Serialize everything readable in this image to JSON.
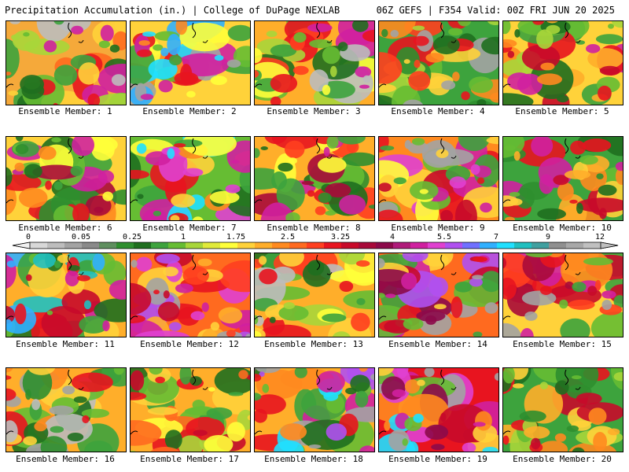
{
  "header": {
    "left": "Precipitation Accumulation (in.) | College of DuPage NEXLAB",
    "right": "06Z GEFS | F354 Valid: 00Z FRI JUN 20 2025"
  },
  "colorbar": {
    "labels": [
      "0",
      "0.05",
      "0.25",
      "1",
      "1.75",
      "2.5",
      "3.25",
      "4",
      "5.5",
      "7",
      "9",
      "12"
    ],
    "colors": [
      "#d8d8d8",
      "#bdbdbd",
      "#a3a3a3",
      "#8a8a8a",
      "#5f8f5f",
      "#2f8f2f",
      "#1f6f1f",
      "#3da33d",
      "#66bd33",
      "#a8d63a",
      "#e0ea3a",
      "#ffff3a",
      "#ffd23a",
      "#ffae2a",
      "#ff8a1f",
      "#ff6a1f",
      "#ff3f1f",
      "#e8141f",
      "#c80a2a",
      "#a80a3a",
      "#8c0a4a",
      "#b01a7a",
      "#d020a0",
      "#e040d0",
      "#b050f0",
      "#7070ff",
      "#30b0ff",
      "#20e0ff",
      "#20c0c0",
      "#40a0a0",
      "#909090",
      "#a8a8a8",
      "#c0c0c0"
    ]
  },
  "members": [
    {
      "label": "Ensemble Member: 1",
      "base": "#f5a93a",
      "blobs": [
        "#3da33d",
        "#1f6f1f",
        "#ffd23a",
        "#e8141f",
        "#d020a0",
        "#66bd33",
        "#a8d63a",
        "#ff6a1f",
        "#bdbdbd"
      ]
    },
    {
      "label": "Ensemble Member: 2",
      "base": "#ffd23a",
      "blobs": [
        "#66bd33",
        "#ff8a1f",
        "#e8141f",
        "#d020a0",
        "#30b0ff",
        "#20e0ff",
        "#a3a3a3",
        "#3da33d",
        "#ffff3a"
      ]
    },
    {
      "label": "Ensemble Member: 3",
      "base": "#ffae2a",
      "blobs": [
        "#3da33d",
        "#66bd33",
        "#e8141f",
        "#d020a0",
        "#ff3f1f",
        "#a8d63a",
        "#ffff3a",
        "#1f6f1f",
        "#bdbdbd"
      ]
    },
    {
      "label": "Ensemble Member: 4",
      "base": "#3da33d",
      "blobs": [
        "#1f6f1f",
        "#66bd33",
        "#ffd23a",
        "#ff8a1f",
        "#e8141f",
        "#a3a3a3",
        "#a8d63a",
        "#2f8f2f",
        "#ff3f1f"
      ]
    },
    {
      "label": "Ensemble Member: 5",
      "base": "#ffd23a",
      "blobs": [
        "#3da33d",
        "#66bd33",
        "#e8141f",
        "#ff8a1f",
        "#a8d63a",
        "#1f6f1f",
        "#c80a2a",
        "#ffae2a",
        "#d020a0"
      ]
    },
    {
      "label": "Ensemble Member: 6",
      "base": "#ffd23a",
      "blobs": [
        "#3da33d",
        "#1f6f1f",
        "#e8141f",
        "#d020a0",
        "#ff8a1f",
        "#66bd33",
        "#ffff3a",
        "#a80a3a",
        "#2f8f2f"
      ]
    },
    {
      "label": "Ensemble Member: 7",
      "base": "#66bd33",
      "blobs": [
        "#3da33d",
        "#ffd23a",
        "#e8141f",
        "#d020a0",
        "#e040d0",
        "#20e0ff",
        "#ff8a1f",
        "#1f6f1f",
        "#ffff3a"
      ]
    },
    {
      "label": "Ensemble Member: 8",
      "base": "#ffae2a",
      "blobs": [
        "#3da33d",
        "#66bd33",
        "#e8141f",
        "#d020a0",
        "#ff3f1f",
        "#1f6f1f",
        "#ffff3a",
        "#a80a3a",
        "#2f8f2f"
      ]
    },
    {
      "label": "Ensemble Member: 9",
      "base": "#ff8a1f",
      "blobs": [
        "#e8141f",
        "#d020a0",
        "#ffd23a",
        "#66bd33",
        "#a3a3a3",
        "#3da33d",
        "#c80a2a",
        "#e040d0",
        "#ffff3a"
      ]
    },
    {
      "label": "Ensemble Member: 10",
      "base": "#3da33d",
      "blobs": [
        "#1f6f1f",
        "#ffd23a",
        "#e8141f",
        "#ff8a1f",
        "#d020a0",
        "#66bd33",
        "#c80a2a",
        "#ffae2a",
        "#2f8f2f"
      ]
    },
    {
      "label": "Ensemble Member: 11",
      "base": "#ffae2a",
      "blobs": [
        "#3da33d",
        "#66bd33",
        "#e8141f",
        "#d020a0",
        "#20c0c0",
        "#30b0ff",
        "#1f6f1f",
        "#ffd23a",
        "#c80a2a"
      ]
    },
    {
      "label": "Ensemble Member: 12",
      "base": "#ff6a1f",
      "blobs": [
        "#e8141f",
        "#d020a0",
        "#ffd23a",
        "#e040d0",
        "#b050f0",
        "#a3a3a3",
        "#c80a2a",
        "#ff3f1f",
        "#ffae2a"
      ]
    },
    {
      "label": "Ensemble Member: 13",
      "base": "#ffae2a",
      "blobs": [
        "#66bd33",
        "#3da33d",
        "#e8141f",
        "#a8d63a",
        "#ffd23a",
        "#ff3f1f",
        "#bdbdbd",
        "#1f6f1f",
        "#ffff3a"
      ]
    },
    {
      "label": "Ensemble Member: 14",
      "base": "#ff6a1f",
      "blobs": [
        "#e8141f",
        "#d020a0",
        "#3da33d",
        "#66bd33",
        "#b050f0",
        "#a3a3a3",
        "#c80a2a",
        "#ffd23a",
        "#8c0a4a"
      ]
    },
    {
      "label": "Ensemble Member: 15",
      "base": "#ffd23a",
      "blobs": [
        "#3da33d",
        "#e8141f",
        "#d020a0",
        "#ff3f1f",
        "#66bd33",
        "#c80a2a",
        "#a80a3a",
        "#ff8a1f",
        "#a3a3a3"
      ]
    },
    {
      "label": "Ensemble Member: 16",
      "base": "#ffae2a",
      "blobs": [
        "#3da33d",
        "#1f6f1f",
        "#66bd33",
        "#a3a3a3",
        "#ffd23a",
        "#e8141f",
        "#ff8a1f",
        "#2f8f2f",
        "#bdbdbd"
      ]
    },
    {
      "label": "Ensemble Member: 17",
      "base": "#ffae2a",
      "blobs": [
        "#66bd33",
        "#3da33d",
        "#ffd23a",
        "#e8141f",
        "#ff6a1f",
        "#c80a2a",
        "#a8d63a",
        "#1f6f1f",
        "#ffff3a"
      ]
    },
    {
      "label": "Ensemble Member: 18",
      "base": "#ffae2a",
      "blobs": [
        "#3da33d",
        "#66bd33",
        "#e8141f",
        "#d020a0",
        "#20e0ff",
        "#a3a3a3",
        "#1f6f1f",
        "#ff8a1f",
        "#b050f0"
      ]
    },
    {
      "label": "Ensemble Member: 19",
      "base": "#e8141f",
      "blobs": [
        "#d020a0",
        "#ffd23a",
        "#ff8a1f",
        "#e040d0",
        "#20e0ff",
        "#a3a3a3",
        "#c80a2a",
        "#66bd33",
        "#8c0a4a"
      ]
    },
    {
      "label": "Ensemble Member: 20",
      "base": "#3da33d",
      "blobs": [
        "#1f6f1f",
        "#66bd33",
        "#ffd23a",
        "#ff8a1f",
        "#e8141f",
        "#a8d63a",
        "#c80a2a",
        "#2f8f2f",
        "#ffae2a"
      ]
    }
  ]
}
